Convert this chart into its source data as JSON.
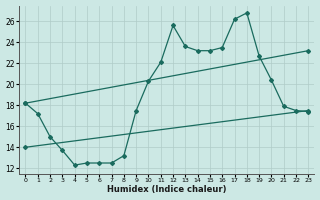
{
  "xlabel": "Humidex (Indice chaleur)",
  "background_color": "#cce8e4",
  "grid_color": "#b0ccc8",
  "line_color": "#1a6b5e",
  "xlim": [
    -0.5,
    23.5
  ],
  "ylim": [
    11.5,
    27.5
  ],
  "xticks": [
    0,
    1,
    2,
    3,
    4,
    5,
    6,
    7,
    8,
    9,
    10,
    11,
    12,
    13,
    14,
    15,
    16,
    17,
    18,
    19,
    20,
    21,
    22,
    23
  ],
  "yticks": [
    12,
    14,
    16,
    18,
    20,
    22,
    24,
    26
  ],
  "series1_x": [
    0,
    1,
    2,
    3,
    4,
    5,
    6,
    7,
    8,
    9,
    10,
    11,
    12,
    13,
    14,
    15,
    16,
    17,
    18,
    19,
    20,
    21,
    22,
    23
  ],
  "series1_y": [
    18.2,
    17.2,
    15.0,
    13.7,
    12.3,
    12.5,
    12.5,
    12.5,
    13.2,
    17.5,
    20.3,
    22.1,
    25.6,
    23.6,
    23.2,
    23.2,
    23.5,
    26.2,
    26.8,
    22.7,
    20.4,
    17.9,
    17.5,
    17.4
  ],
  "series2_x": [
    0,
    23
  ],
  "series2_y": [
    18.2,
    23.2
  ],
  "series3_x": [
    0,
    23
  ],
  "series3_y": [
    14.0,
    17.5
  ]
}
